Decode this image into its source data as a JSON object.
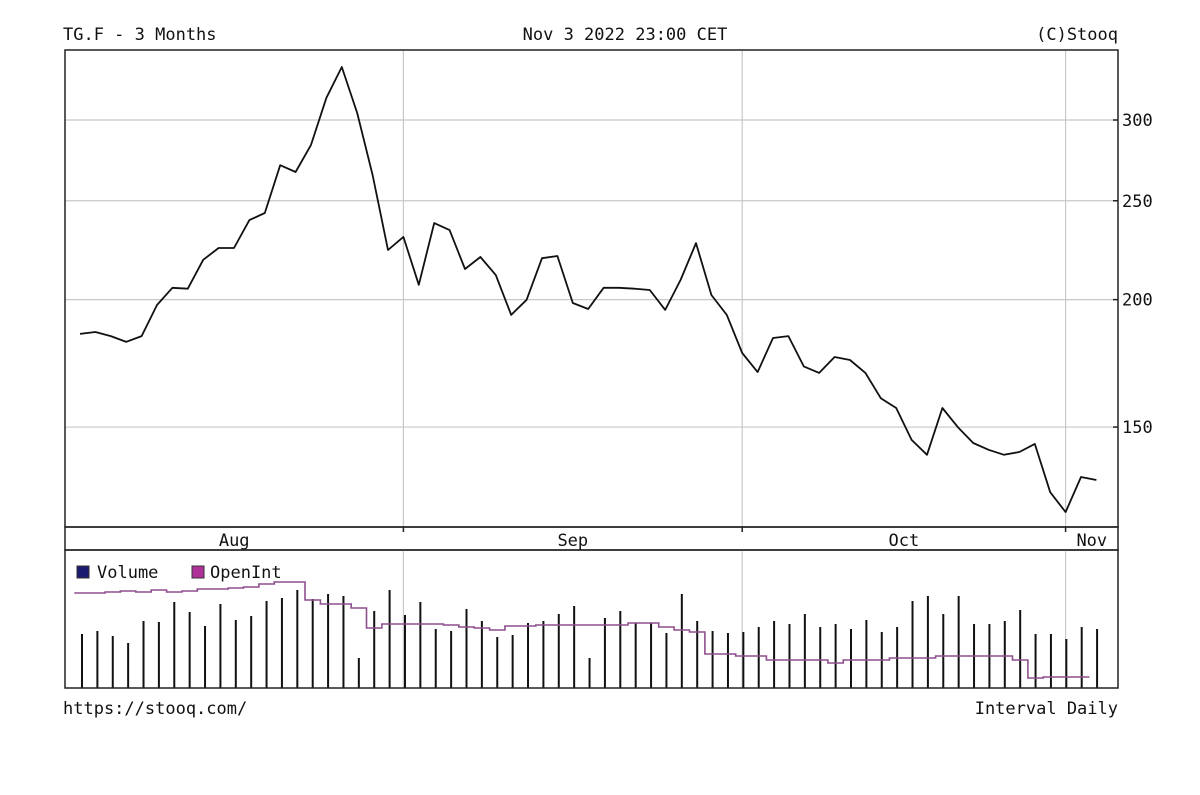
{
  "header": {
    "title": "TG.F - 3 Months",
    "timestamp": "Nov 3 2022 23:00 CET",
    "copyright": "(C)Stooq"
  },
  "footer": {
    "url": "https://stooq.com/",
    "interval": "Interval Daily"
  },
  "legend": {
    "volume_label": "Volume",
    "openint_label": "OpenInt",
    "volume_color": "#1a1a6e",
    "openint_color": "#b0309a"
  },
  "chart_data": {
    "type": "line",
    "title": "TG.F - 3 Months",
    "y_scale": "log",
    "ylim": [
      118,
      345
    ],
    "y_ticks": [
      {
        "value": 300,
        "label": "300"
      },
      {
        "value": 250,
        "label": "250"
      },
      {
        "value": 200,
        "label": "200"
      },
      {
        "value": 150,
        "label": "150"
      }
    ],
    "grid": true,
    "months": [
      {
        "label": "Aug",
        "start_index": -1
      },
      {
        "label": "Sep",
        "start_index": 21
      },
      {
        "label": "Oct",
        "start_index": 43
      },
      {
        "label": "Nov",
        "start_index": 64
      }
    ],
    "x_unit": "trading day index",
    "series": [
      {
        "name": "Close",
        "values": [
          185.1,
          185.9,
          184.2,
          181.8,
          184.2,
          197.6,
          205.4,
          205.0,
          218.8,
          224.7,
          224.7,
          239.3,
          243.2,
          270.9,
          266.8,
          283.6,
          315.4,
          338.1,
          304.8,
          265.0,
          223.7,
          230.4,
          206.8,
          237.7,
          234.0,
          214.3,
          220.2,
          211.4,
          193.2,
          199.9,
          219.6,
          220.7,
          198.5,
          195.8,
          205.4,
          205.4,
          205.0,
          204.4,
          195.4,
          209.1,
          227.2,
          202.1,
          193.2,
          177.3,
          169.8,
          183.4,
          184.2,
          172.0,
          169.5,
          175.7,
          174.5,
          169.5,
          160.1,
          156.6,
          145.7,
          140.9,
          156.6,
          150.0,
          144.7,
          142.5,
          140.9,
          141.8,
          144.4,
          129.5,
          123.8,
          134.0,
          133.1
        ]
      }
    ],
    "volume_panel": {
      "unit": "relative",
      "volume": [
        54,
        57,
        52,
        45,
        67,
        66,
        86,
        76,
        62,
        84,
        68,
        72,
        87,
        90,
        98,
        89,
        94,
        92,
        30,
        77,
        98,
        73,
        86,
        59,
        57,
        79,
        67,
        51,
        53,
        65,
        67,
        74,
        82,
        30,
        70,
        77,
        65,
        65,
        55,
        94,
        67,
        57,
        55,
        56,
        61,
        67,
        64,
        74,
        61,
        64,
        59,
        68,
        56,
        61,
        87,
        92,
        74,
        92,
        64,
        64,
        67,
        78,
        54,
        54,
        49,
        61,
        59
      ],
      "open_interest": [
        95,
        95,
        96,
        97,
        96,
        98,
        96,
        97,
        99,
        99,
        100,
        101,
        104,
        106,
        106,
        88,
        84,
        84,
        80,
        60,
        64,
        64,
        64,
        64,
        63,
        61,
        60,
        58,
        62,
        62,
        63,
        63,
        63,
        63,
        63,
        63,
        65,
        65,
        61,
        58,
        56,
        34,
        34,
        32,
        32,
        28,
        28,
        28,
        28,
        25,
        28,
        28,
        28,
        30,
        30,
        30,
        32,
        32,
        32,
        32,
        32,
        28,
        10,
        11,
        11,
        11,
        null
      ]
    }
  }
}
